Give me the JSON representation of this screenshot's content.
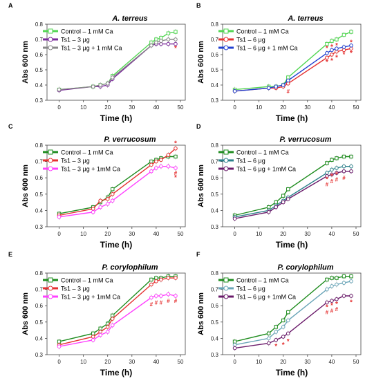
{
  "chart_data": [
    {
      "panel": "A",
      "type": "line",
      "title": "A. terreus",
      "xlabel": "Time (h)",
      "ylabel": "Abs 600 nm",
      "xlim": [
        -5,
        52
      ],
      "ylim": [
        0.3,
        0.8
      ],
      "xticks": [
        0,
        10,
        20,
        30,
        40,
        50
      ],
      "yticks": [
        0.3,
        0.4,
        0.5,
        0.6,
        0.7,
        0.8
      ],
      "legend": "top-left",
      "x": [
        0,
        14,
        17,
        20,
        22,
        38,
        40,
        42,
        45,
        48
      ],
      "series": [
        {
          "name": "Control – 1 mM Ca",
          "color": "#52d652",
          "marker": "square",
          "values": [
            0.37,
            0.39,
            0.4,
            0.41,
            0.46,
            0.68,
            0.7,
            0.71,
            0.74,
            0.75
          ]
        },
        {
          "name": "Ts1 – 3 μg",
          "color": "#7a2a9a",
          "marker": "circle",
          "values": [
            0.365,
            0.39,
            0.39,
            0.4,
            0.44,
            0.66,
            0.67,
            0.67,
            0.67,
            0.67
          ]
        },
        {
          "name": "Ts1 – 3 μg + 1 mM Ca",
          "color": "#888888",
          "marker": "circle",
          "values": [
            0.37,
            0.39,
            0.4,
            0.41,
            0.45,
            0.66,
            0.68,
            0.69,
            0.7,
            0.7
          ]
        }
      ],
      "annotations": [
        {
          "text": "*",
          "x": 48,
          "y": 0.64,
          "color": "#e53030"
        }
      ]
    },
    {
      "panel": "B",
      "type": "line",
      "title": "A. terreus",
      "xlabel": "Time (h)",
      "ylabel": "Abs 600 nm",
      "xlim": [
        -5,
        52
      ],
      "ylim": [
        0.3,
        0.8
      ],
      "xticks": [
        0,
        10,
        20,
        30,
        40,
        50
      ],
      "yticks": [
        0.3,
        0.4,
        0.5,
        0.6,
        0.7,
        0.8
      ],
      "legend": "top-left",
      "x": [
        0,
        14,
        17,
        20,
        22,
        38,
        40,
        42,
        45,
        48
      ],
      "series": [
        {
          "name": "Control – 1 mM Ca",
          "color": "#52d652",
          "marker": "square",
          "values": [
            0.37,
            0.39,
            0.39,
            0.4,
            0.45,
            0.67,
            0.69,
            0.7,
            0.73,
            0.75
          ]
        },
        {
          "name": "Ts1 – 6 μg",
          "color": "#e53030",
          "marker": "circle",
          "values": [
            0.36,
            0.38,
            0.38,
            0.39,
            0.41,
            0.58,
            0.6,
            0.62,
            0.63,
            0.64
          ]
        },
        {
          "name": "Ts1 – 6 μg + 1 mM Ca",
          "color": "#1f3fd0",
          "marker": "circle",
          "values": [
            0.36,
            0.38,
            0.39,
            0.4,
            0.43,
            0.61,
            0.63,
            0.64,
            0.65,
            0.66
          ]
        }
      ],
      "annotations": [
        {
          "text": "#",
          "x": 22,
          "y": 0.36,
          "color": "#e53030"
        },
        {
          "text": "*",
          "x": 38,
          "y": 0.55,
          "color": "#e53030"
        },
        {
          "text": "*",
          "x": 40,
          "y": 0.56,
          "color": "#e53030"
        },
        {
          "text": "*",
          "x": 42,
          "y": 0.58,
          "color": "#e53030"
        },
        {
          "text": "*",
          "x": 45,
          "y": 0.6,
          "color": "#e53030"
        },
        {
          "text": "*",
          "x": 48,
          "y": 0.61,
          "color": "#e53030"
        },
        {
          "text": "*",
          "x": 38,
          "y": 0.64,
          "color": "#e53030"
        },
        {
          "text": "*",
          "x": 40,
          "y": 0.65,
          "color": "#e53030"
        },
        {
          "text": "*",
          "x": 42,
          "y": 0.66,
          "color": "#e53030"
        },
        {
          "text": "*",
          "x": 48,
          "y": 0.68,
          "color": "#e53030"
        }
      ]
    },
    {
      "panel": "C",
      "type": "line",
      "title": "P. verrucosum",
      "xlabel": "Time (h)",
      "ylabel": "Abs 600 nm",
      "xlim": [
        -5,
        52
      ],
      "ylim": [
        0.3,
        0.8
      ],
      "xticks": [
        0,
        10,
        20,
        30,
        40,
        50
      ],
      "yticks": [
        0.3,
        0.4,
        0.5,
        0.6,
        0.7,
        0.8
      ],
      "legend": "top-left",
      "x": [
        0,
        14,
        17,
        20,
        22,
        38,
        40,
        42,
        45,
        48
      ],
      "series": [
        {
          "name": "Control – 1 mM Ca",
          "color": "#1e8c1e",
          "marker": "square",
          "values": [
            0.38,
            0.42,
            0.45,
            0.48,
            0.53,
            0.7,
            0.71,
            0.72,
            0.73,
            0.73
          ]
        },
        {
          "name": "Ts1 – 3 μg",
          "color": "#e53030",
          "marker": "circle",
          "values": [
            0.37,
            0.41,
            0.46,
            0.47,
            0.5,
            0.68,
            0.7,
            0.71,
            0.74,
            0.78
          ]
        },
        {
          "name": "Ts1 – 3 μg + 1mM Ca",
          "color": "#ff40ff",
          "marker": "circle",
          "values": [
            0.36,
            0.39,
            0.42,
            0.44,
            0.46,
            0.64,
            0.66,
            0.67,
            0.67,
            0.66
          ]
        }
      ],
      "annotations": [
        {
          "text": "*",
          "x": 48,
          "y": 0.81,
          "color": "#e53030"
        },
        {
          "text": "#",
          "x": 48,
          "y": 0.63,
          "color": "#e53030"
        },
        {
          "text": "*",
          "x": 48,
          "y": 0.6,
          "color": "#e53030"
        }
      ]
    },
    {
      "panel": "D",
      "type": "line",
      "title": "P. verrucosum",
      "xlabel": "Time (h)",
      "ylabel": "Abs 600 nm",
      "xlim": [
        -5,
        52
      ],
      "ylim": [
        0.3,
        0.8
      ],
      "xticks": [
        0,
        10,
        20,
        30,
        40,
        50
      ],
      "yticks": [
        0.3,
        0.4,
        0.5,
        0.6,
        0.7,
        0.8
      ],
      "legend": "top-left",
      "x": [
        0,
        14,
        17,
        20,
        22,
        38,
        40,
        42,
        45,
        48
      ],
      "series": [
        {
          "name": "Control – 1 mM Ca",
          "color": "#1e8c1e",
          "marker": "square",
          "values": [
            0.37,
            0.42,
            0.45,
            0.49,
            0.53,
            0.69,
            0.71,
            0.72,
            0.73,
            0.73
          ]
        },
        {
          "name": "Ts1 – 6 μg",
          "color": "#2a7f8a",
          "marker": "circle",
          "values": [
            0.36,
            0.4,
            0.43,
            0.46,
            0.48,
            0.63,
            0.65,
            0.66,
            0.67,
            0.67
          ]
        },
        {
          "name": "Ts1 – 6 μg + 1mM Ca",
          "color": "#6a1a6a",
          "marker": "circle",
          "values": [
            0.35,
            0.39,
            0.42,
            0.45,
            0.47,
            0.61,
            0.62,
            0.63,
            0.64,
            0.64
          ]
        }
      ],
      "annotations": [
        {
          "text": "*",
          "x": 38,
          "y": 0.59,
          "color": "#e53030"
        },
        {
          "text": "*",
          "x": 40,
          "y": 0.61,
          "color": "#e53030"
        },
        {
          "text": "*",
          "x": 42,
          "y": 0.62,
          "color": "#e53030"
        },
        {
          "text": "#",
          "x": 38,
          "y": 0.56,
          "color": "#e53030"
        },
        {
          "text": "#",
          "x": 40,
          "y": 0.58,
          "color": "#e53030"
        },
        {
          "text": "#",
          "x": 42,
          "y": 0.59,
          "color": "#e53030"
        },
        {
          "text": "#",
          "x": 45,
          "y": 0.6,
          "color": "#e53030"
        }
      ]
    },
    {
      "panel": "E",
      "type": "line",
      "title": "P. corylophilum",
      "xlabel": "Time (h)",
      "ylabel": "Abs 600 nm",
      "xlim": [
        -5,
        52
      ],
      "ylim": [
        0.3,
        0.8
      ],
      "xticks": [
        0,
        10,
        20,
        30,
        40,
        50
      ],
      "yticks": [
        0.3,
        0.4,
        0.5,
        0.6,
        0.7,
        0.8
      ],
      "legend": "top-left",
      "x": [
        0,
        14,
        17,
        20,
        22,
        38,
        40,
        42,
        45,
        48
      ],
      "series": [
        {
          "name": "Control – 1 mM Ca",
          "color": "#1e8c1e",
          "marker": "square",
          "values": [
            0.38,
            0.43,
            0.46,
            0.49,
            0.54,
            0.76,
            0.77,
            0.77,
            0.78,
            0.78
          ]
        },
        {
          "name": "Ts1 – 3 μg",
          "color": "#e53030",
          "marker": "circle",
          "values": [
            0.36,
            0.41,
            0.44,
            0.47,
            0.52,
            0.73,
            0.75,
            0.76,
            0.77,
            0.77
          ]
        },
        {
          "name": "Ts1 – 3 μg + 1mM Ca",
          "color": "#ff40ff",
          "marker": "circle",
          "values": [
            0.35,
            0.39,
            0.42,
            0.44,
            0.48,
            0.65,
            0.66,
            0.66,
            0.67,
            0.66
          ]
        }
      ],
      "annotations": [
        {
          "text": "#",
          "x": 38,
          "y": 0.61,
          "color": "#e53030"
        },
        {
          "text": "#",
          "x": 40,
          "y": 0.62,
          "color": "#e53030"
        },
        {
          "text": "#",
          "x": 42,
          "y": 0.62,
          "color": "#e53030"
        },
        {
          "text": "#",
          "x": 45,
          "y": 0.63,
          "color": "#e53030"
        },
        {
          "text": "#",
          "x": 48,
          "y": 0.63,
          "color": "#e53030"
        }
      ]
    },
    {
      "panel": "F",
      "type": "line",
      "title": "P. corylophilum",
      "xlabel": "Time (h)",
      "ylabel": "Abs 600 nm",
      "xlim": [
        -5,
        52
      ],
      "ylim": [
        0.3,
        0.8
      ],
      "xticks": [
        0,
        10,
        20,
        30,
        40,
        50
      ],
      "yticks": [
        0.3,
        0.4,
        0.5,
        0.6,
        0.7,
        0.8
      ],
      "legend": "top-left",
      "x": [
        0,
        14,
        17,
        20,
        22,
        38,
        40,
        42,
        45,
        48
      ],
      "series": [
        {
          "name": "Control – 1 mM Ca",
          "color": "#1e8c1e",
          "marker": "square",
          "values": [
            0.38,
            0.43,
            0.47,
            0.51,
            0.56,
            0.76,
            0.77,
            0.77,
            0.78,
            0.78
          ]
        },
        {
          "name": "Ts1 – 6 μg",
          "color": "#6aa5b8",
          "marker": "circle",
          "values": [
            0.36,
            0.4,
            0.44,
            0.47,
            0.51,
            0.7,
            0.72,
            0.73,
            0.74,
            0.75
          ]
        },
        {
          "name": "Ts1 – 6 μg + 1mM Ca",
          "color": "#6a1a6a",
          "marker": "circle",
          "values": [
            0.34,
            0.37,
            0.39,
            0.41,
            0.43,
            0.62,
            0.63,
            0.64,
            0.66,
            0.66
          ]
        }
      ],
      "annotations": [
        {
          "text": "*",
          "x": 17,
          "y": 0.35,
          "color": "#e53030"
        },
        {
          "text": "*",
          "x": 20,
          "y": 0.36,
          "color": "#e53030"
        },
        {
          "text": "*",
          "x": 22,
          "y": 0.38,
          "color": "#e53030"
        },
        {
          "text": "*",
          "x": 38,
          "y": 0.59,
          "color": "#e53030"
        },
        {
          "text": "*",
          "x": 40,
          "y": 0.6,
          "color": "#e53030"
        },
        {
          "text": "*",
          "x": 42,
          "y": 0.61,
          "color": "#e53030"
        },
        {
          "text": "#",
          "x": 38,
          "y": 0.56,
          "color": "#e53030"
        },
        {
          "text": "#",
          "x": 40,
          "y": 0.57,
          "color": "#e53030"
        },
        {
          "text": "#",
          "x": 42,
          "y": 0.58,
          "color": "#e53030"
        },
        {
          "text": "*",
          "x": 48,
          "y": 0.62,
          "color": "#e53030"
        }
      ]
    }
  ]
}
